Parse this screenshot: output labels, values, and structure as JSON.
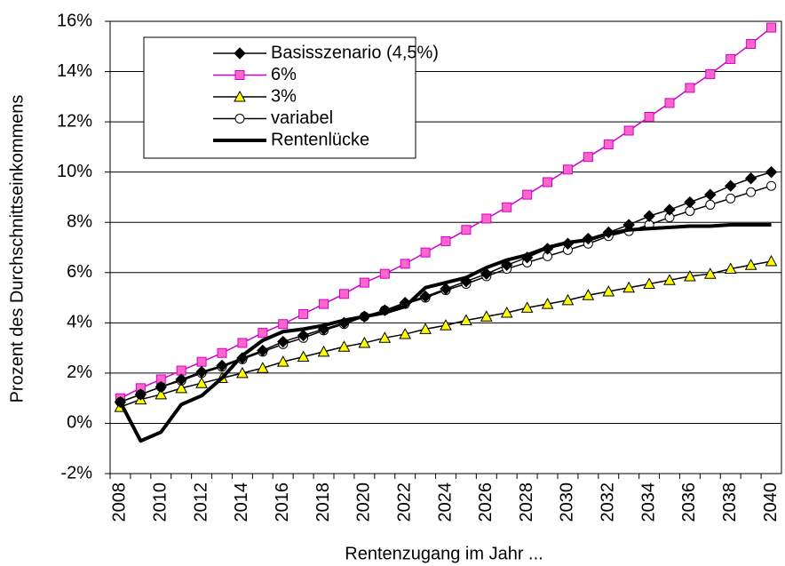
{
  "chart_data": {
    "type": "line",
    "x_label": "Rentenzugang im Jahr ...",
    "y_label": "Prozent des Durchschnittseinkommens",
    "categories": [
      "2008",
      null,
      "2010",
      null,
      "2012",
      null,
      "2014",
      null,
      "2016",
      null,
      "2018",
      null,
      "2020",
      null,
      "2022",
      null,
      "2024",
      null,
      "2026",
      null,
      "2028",
      null,
      "2030",
      null,
      "2032",
      null,
      "2034",
      null,
      "2036",
      null,
      "2038",
      null,
      "2040"
    ],
    "ylim": [
      -2,
      16
    ],
    "yticks": [
      {
        "value": -2,
        "label": "-2%"
      },
      {
        "value": 0,
        "label": "0%"
      },
      {
        "value": 2,
        "label": "2%"
      },
      {
        "value": 4,
        "label": "4%"
      },
      {
        "value": 6,
        "label": "6%"
      },
      {
        "value": 8,
        "label": "8%"
      },
      {
        "value": 10,
        "label": "10%"
      },
      {
        "value": 12,
        "label": "12%"
      },
      {
        "value": 14,
        "label": "14%"
      },
      {
        "value": 16,
        "label": "16%"
      }
    ],
    "grid": true,
    "legend": "top-left",
    "series": [
      {
        "name": "Basisszenario (4,5%)",
        "color": "#000000",
        "marker": "diamond",
        "fill": "#000000",
        "values": [
          0.85,
          1.15,
          1.45,
          1.75,
          2.05,
          2.3,
          2.6,
          2.9,
          3.25,
          3.5,
          3.75,
          4.0,
          4.25,
          4.5,
          4.8,
          5.05,
          5.35,
          5.65,
          5.95,
          6.3,
          6.6,
          6.95,
          7.15,
          7.35,
          7.6,
          7.9,
          8.25,
          8.5,
          8.8,
          9.1,
          9.45,
          9.75,
          10.0
        ]
      },
      {
        "name": "6%",
        "color": "#cc00cc",
        "marker": "square",
        "fill": "#ff66cc",
        "values": [
          1.0,
          1.4,
          1.75,
          2.1,
          2.45,
          2.8,
          3.2,
          3.6,
          3.95,
          4.35,
          4.75,
          5.15,
          5.6,
          5.95,
          6.35,
          6.8,
          7.25,
          7.7,
          8.15,
          8.6,
          9.1,
          9.6,
          10.1,
          10.6,
          11.1,
          11.65,
          12.2,
          12.75,
          13.35,
          13.9,
          14.5,
          15.1,
          15.75
        ]
      },
      {
        "name": "3%",
        "color": "#000000",
        "marker": "triangle",
        "fill": "#ffff00",
        "values": [
          0.65,
          0.95,
          1.15,
          1.4,
          1.6,
          1.8,
          2.0,
          2.2,
          2.45,
          2.65,
          2.85,
          3.05,
          3.2,
          3.4,
          3.55,
          3.75,
          3.9,
          4.1,
          4.25,
          4.4,
          4.6,
          4.75,
          4.9,
          5.1,
          5.25,
          5.4,
          5.55,
          5.7,
          5.85,
          5.95,
          6.15,
          6.3,
          6.45
        ]
      },
      {
        "name": "variabel",
        "color": "#000000",
        "marker": "circle",
        "fill": "#ffffff",
        "values": [
          0.85,
          1.15,
          1.45,
          1.7,
          2.0,
          2.25,
          2.55,
          2.85,
          3.15,
          3.4,
          3.7,
          3.95,
          4.25,
          4.5,
          4.75,
          5.0,
          5.3,
          5.55,
          5.85,
          6.15,
          6.4,
          6.65,
          6.9,
          7.15,
          7.45,
          7.65,
          7.9,
          8.2,
          8.45,
          8.7,
          8.95,
          9.2,
          9.45
        ]
      },
      {
        "name": "Rentenlücke",
        "color": "#000000",
        "marker": "none",
        "width": 4,
        "values": [
          0.85,
          -0.7,
          -0.35,
          0.75,
          1.1,
          1.8,
          2.7,
          3.3,
          3.65,
          3.75,
          3.9,
          4.1,
          4.25,
          4.4,
          4.65,
          5.4,
          5.6,
          5.8,
          6.2,
          6.5,
          6.7,
          7.0,
          7.2,
          7.3,
          7.55,
          7.7,
          7.75,
          7.8,
          7.85,
          7.85,
          7.9,
          7.9,
          7.9
        ]
      }
    ]
  }
}
